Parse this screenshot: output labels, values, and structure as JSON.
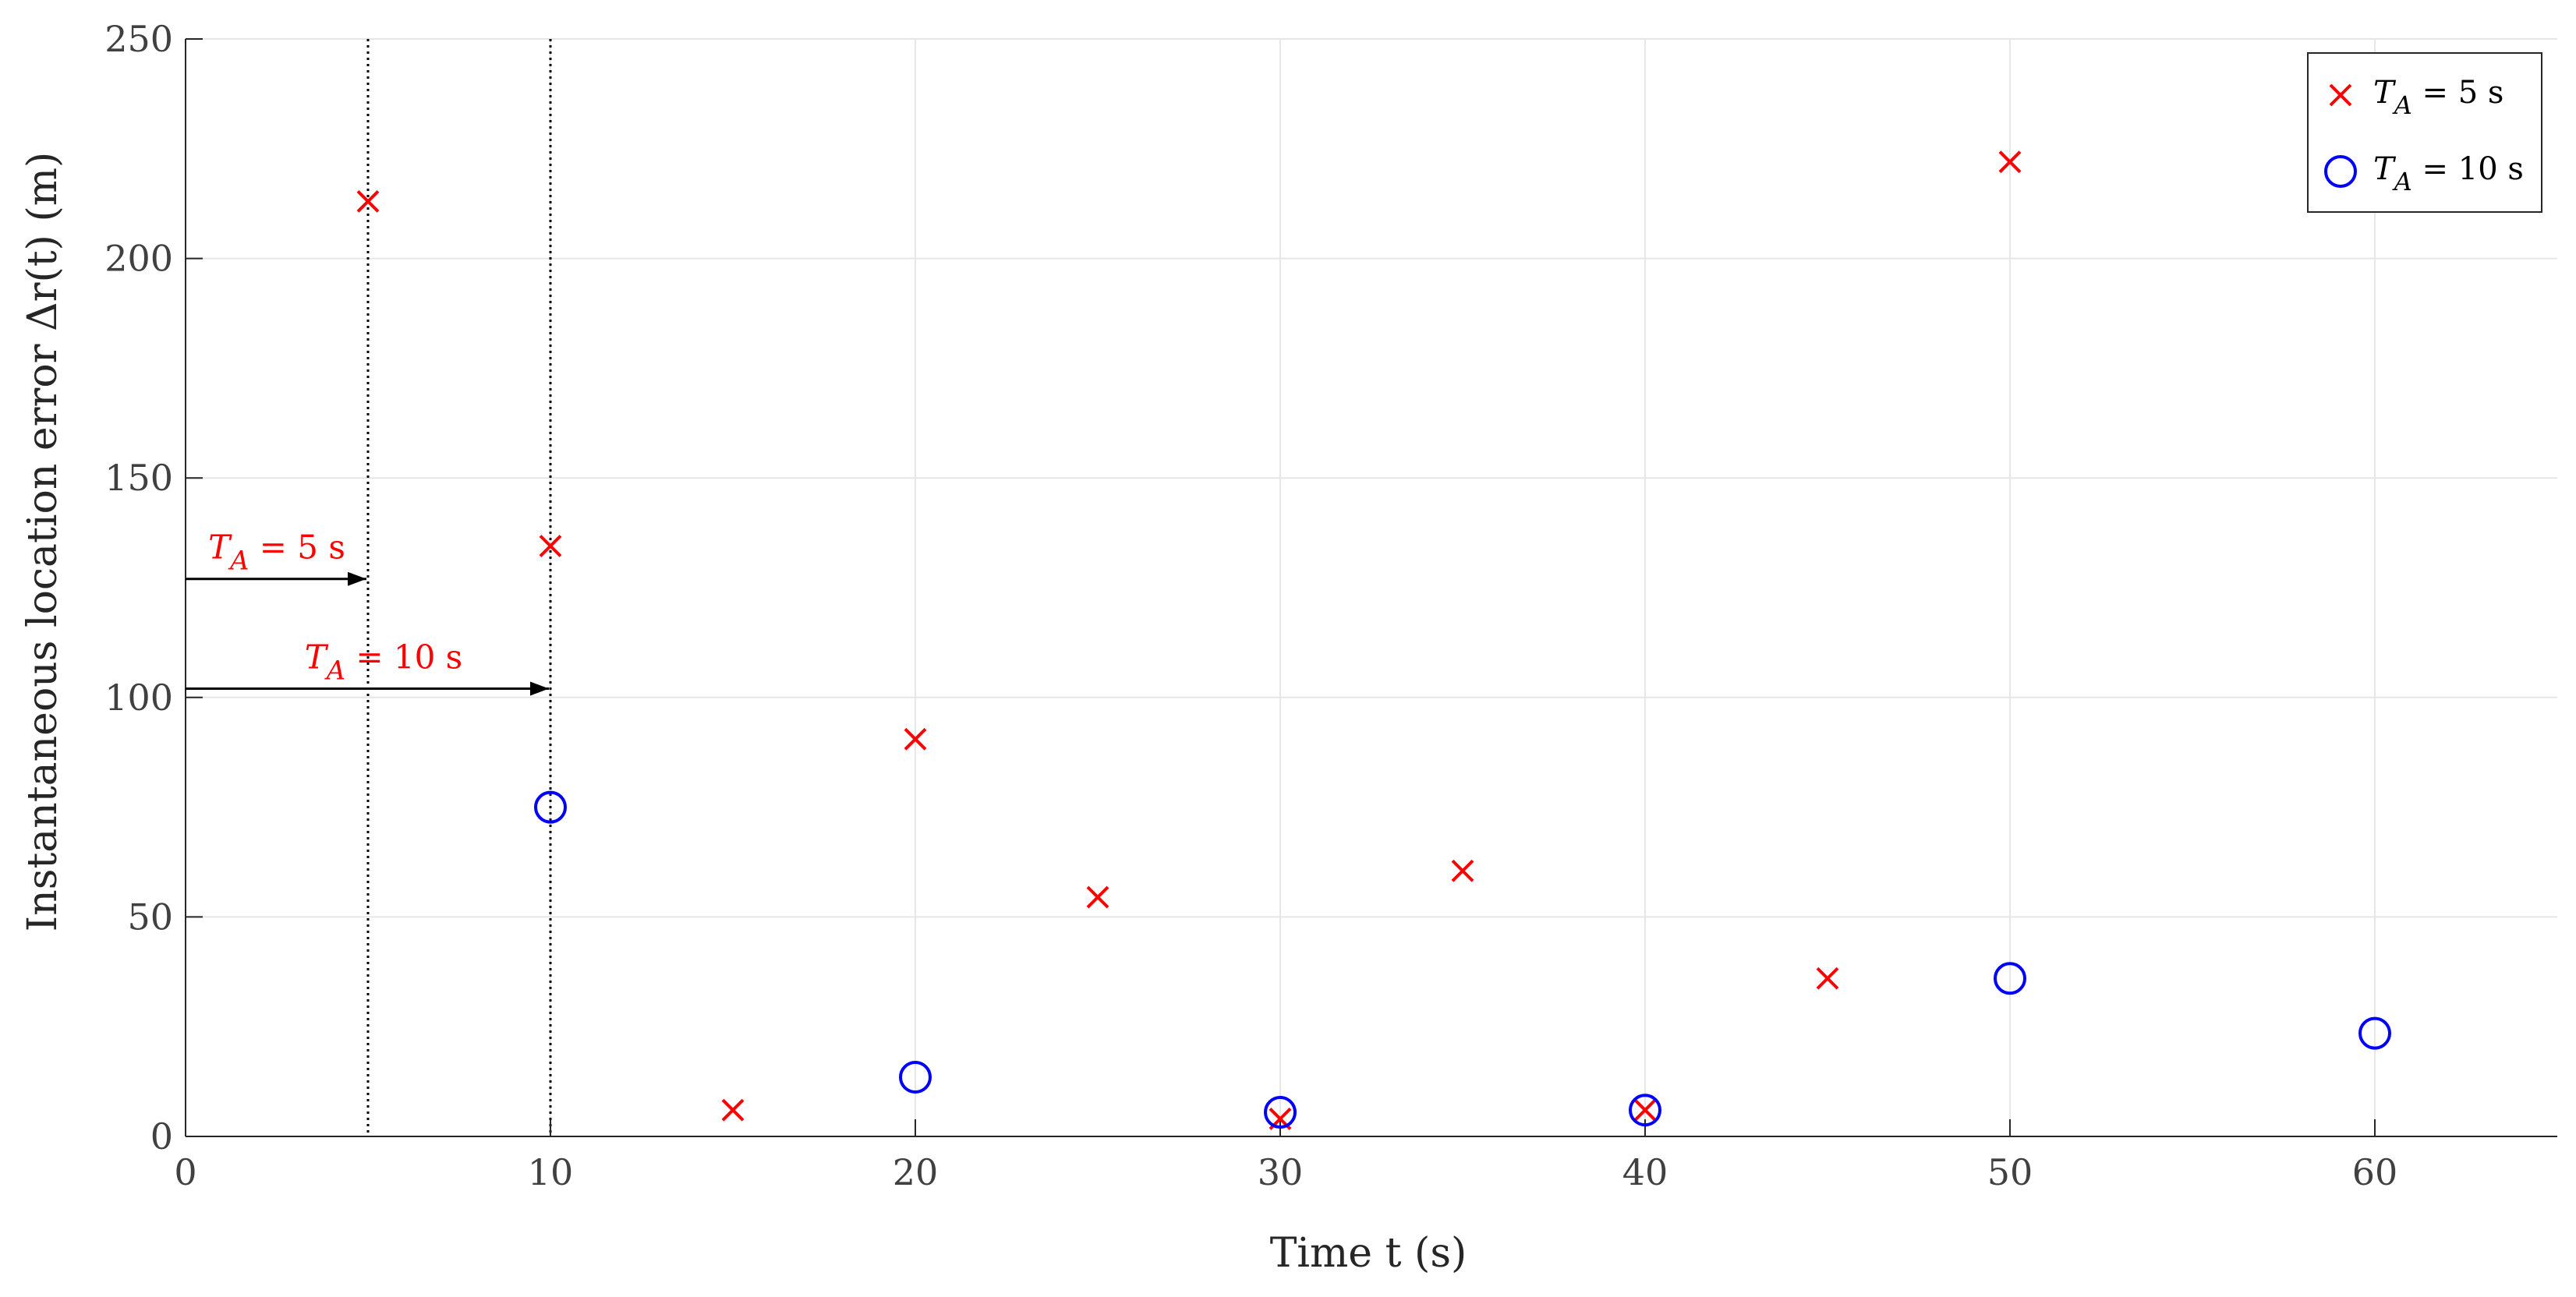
{
  "chart_data": {
    "type": "scatter",
    "title": "",
    "xlabel": "Time   t (s)",
    "ylabel": "Instantaneous  location error  Δr(t) (m)",
    "xlim": [
      0,
      65
    ],
    "ylim": [
      0,
      250
    ],
    "xticks": [
      0,
      10,
      20,
      30,
      40,
      50,
      60
    ],
    "yticks": [
      0,
      50,
      100,
      150,
      200,
      250
    ],
    "grid": true,
    "legend_placement": "top-right",
    "series": [
      {
        "name": "T_A = 5 s",
        "marker": "x",
        "color": "#ff0000",
        "x": [
          5,
          10,
          15,
          20,
          25,
          30,
          35,
          40,
          45,
          50
        ],
        "y": [
          213,
          134.5,
          6,
          90.5,
          54.5,
          4,
          60.5,
          6,
          36,
          222
        ]
      },
      {
        "name": "T_A = 10 s",
        "marker": "o",
        "color": "#0000ff",
        "x": [
          10,
          20,
          30,
          40,
          50,
          60
        ],
        "y": [
          75,
          13.5,
          5.5,
          6,
          36,
          23.5
        ]
      }
    ],
    "reference_lines": [
      {
        "x": 5,
        "style": "dotted",
        "color": "#000000"
      },
      {
        "x": 10,
        "style": "dotted",
        "color": "#000000"
      }
    ],
    "annotations": [
      {
        "text": "T_A = 5 s",
        "main": "T",
        "sub": "A",
        "rest": " = 5 s",
        "arrow_from": [
          0,
          127
        ],
        "arrow_to": [
          5,
          127
        ],
        "color": "#ff0000"
      },
      {
        "text": "T_A = 10 s",
        "main": "T",
        "sub": "A",
        "rest": " = 10 s",
        "arrow_from": [
          0,
          102
        ],
        "arrow_to": [
          10,
          102
        ],
        "color": "#ff0000"
      }
    ],
    "legend": [
      {
        "main": "T",
        "sub": "A",
        "rest": " = 5 s",
        "marker": "x",
        "color": "#ff0000"
      },
      {
        "main": "T",
        "sub": "A",
        "rest": " = 10 s",
        "marker": "o",
        "color": "#0000ff"
      }
    ]
  }
}
